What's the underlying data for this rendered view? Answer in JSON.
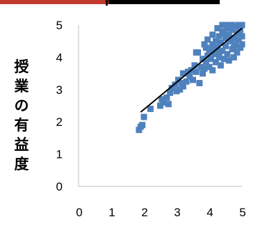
{
  "header_strip": {
    "left_color": "#c0392b",
    "right_color": "#000000"
  },
  "chart_data": {
    "type": "scatter",
    "title": "",
    "xlabel": "",
    "ylabel": "授業の有益度",
    "xlim": [
      0,
      5
    ],
    "ylim": [
      0,
      5
    ],
    "x_ticks": [
      "0",
      "1",
      "2",
      "3",
      "4",
      "5"
    ],
    "y_ticks": [
      "0",
      "1",
      "2",
      "3",
      "4",
      "5"
    ],
    "grid": false,
    "legend": "none",
    "marker": "square",
    "point_color": "#4f81bd",
    "trendline": {
      "type": "linear",
      "color": "#000000",
      "from": [
        1.9,
        2.3
      ],
      "to": [
        5.0,
        4.9
      ]
    },
    "series": [
      {
        "points": [
          [
            1.85,
            1.75
          ],
          [
            1.9,
            1.85
          ],
          [
            1.95,
            1.9
          ],
          [
            2.0,
            2.15
          ],
          [
            2.2,
            2.4
          ],
          [
            2.5,
            2.5
          ],
          [
            2.55,
            2.7
          ],
          [
            2.6,
            2.6
          ],
          [
            2.7,
            2.75
          ],
          [
            2.75,
            2.55
          ],
          [
            2.8,
            2.9
          ],
          [
            2.85,
            3.05
          ],
          [
            2.95,
            3.15
          ],
          [
            3.0,
            2.95
          ],
          [
            3.05,
            3.3
          ],
          [
            3.1,
            3.0
          ],
          [
            3.15,
            3.2
          ],
          [
            3.2,
            3.1
          ],
          [
            3.2,
            3.5
          ],
          [
            3.3,
            3.25
          ],
          [
            3.35,
            3.55
          ],
          [
            3.4,
            3.4
          ],
          [
            3.45,
            3.6
          ],
          [
            3.5,
            3.3
          ],
          [
            3.55,
            3.75
          ],
          [
            3.6,
            3.55
          ],
          [
            3.6,
            4.15
          ],
          [
            3.65,
            4.15
          ],
          [
            3.7,
            3.2
          ],
          [
            3.75,
            3.7
          ],
          [
            3.8,
            3.5
          ],
          [
            3.8,
            3.95
          ],
          [
            3.85,
            3.65
          ],
          [
            3.9,
            3.85
          ],
          [
            3.9,
            4.3
          ],
          [
            3.95,
            4.05
          ],
          [
            4.0,
            3.7
          ],
          [
            4.0,
            4.2
          ],
          [
            4.05,
            3.95
          ],
          [
            4.1,
            4.4
          ],
          [
            4.1,
            3.6
          ],
          [
            4.15,
            4.1
          ],
          [
            4.2,
            4.5
          ],
          [
            4.2,
            3.85
          ],
          [
            4.25,
            4.25
          ],
          [
            4.3,
            4.65
          ],
          [
            4.3,
            4.0
          ],
          [
            4.35,
            3.75
          ],
          [
            4.35,
            4.45
          ],
          [
            4.4,
            4.2
          ],
          [
            4.4,
            4.8
          ],
          [
            4.45,
            3.95
          ],
          [
            4.5,
            4.6
          ],
          [
            4.5,
            4.35
          ],
          [
            4.55,
            4.9
          ],
          [
            4.55,
            4.1
          ],
          [
            4.6,
            4.7
          ],
          [
            4.6,
            3.9
          ],
          [
            4.65,
            4.5
          ],
          [
            4.65,
            5.0
          ],
          [
            4.7,
            4.25
          ],
          [
            4.7,
            4.85
          ],
          [
            4.75,
            4.6
          ],
          [
            4.75,
            4.0
          ],
          [
            4.8,
            4.95
          ],
          [
            4.8,
            4.4
          ],
          [
            4.85,
            4.75
          ],
          [
            4.85,
            4.15
          ],
          [
            4.9,
            5.0
          ],
          [
            4.9,
            4.55
          ],
          [
            4.95,
            4.85
          ],
          [
            4.95,
            4.3
          ],
          [
            5.0,
            5.0
          ],
          [
            5.0,
            4.65
          ],
          [
            5.0,
            4.4
          ],
          [
            4.4,
            5.0
          ],
          [
            4.5,
            5.0
          ],
          [
            4.6,
            5.0
          ],
          [
            4.7,
            5.0
          ],
          [
            4.25,
            4.9
          ],
          [
            4.1,
            4.7
          ],
          [
            3.95,
            4.55
          ],
          [
            3.85,
            4.4
          ],
          [
            4.45,
            4.75
          ],
          [
            4.2,
            4.3
          ],
          [
            4.6,
            4.55
          ],
          [
            4.75,
            4.3
          ],
          [
            4.9,
            4.75
          ],
          [
            4.3,
            4.15
          ],
          [
            4.05,
            4.25
          ]
        ]
      }
    ]
  }
}
